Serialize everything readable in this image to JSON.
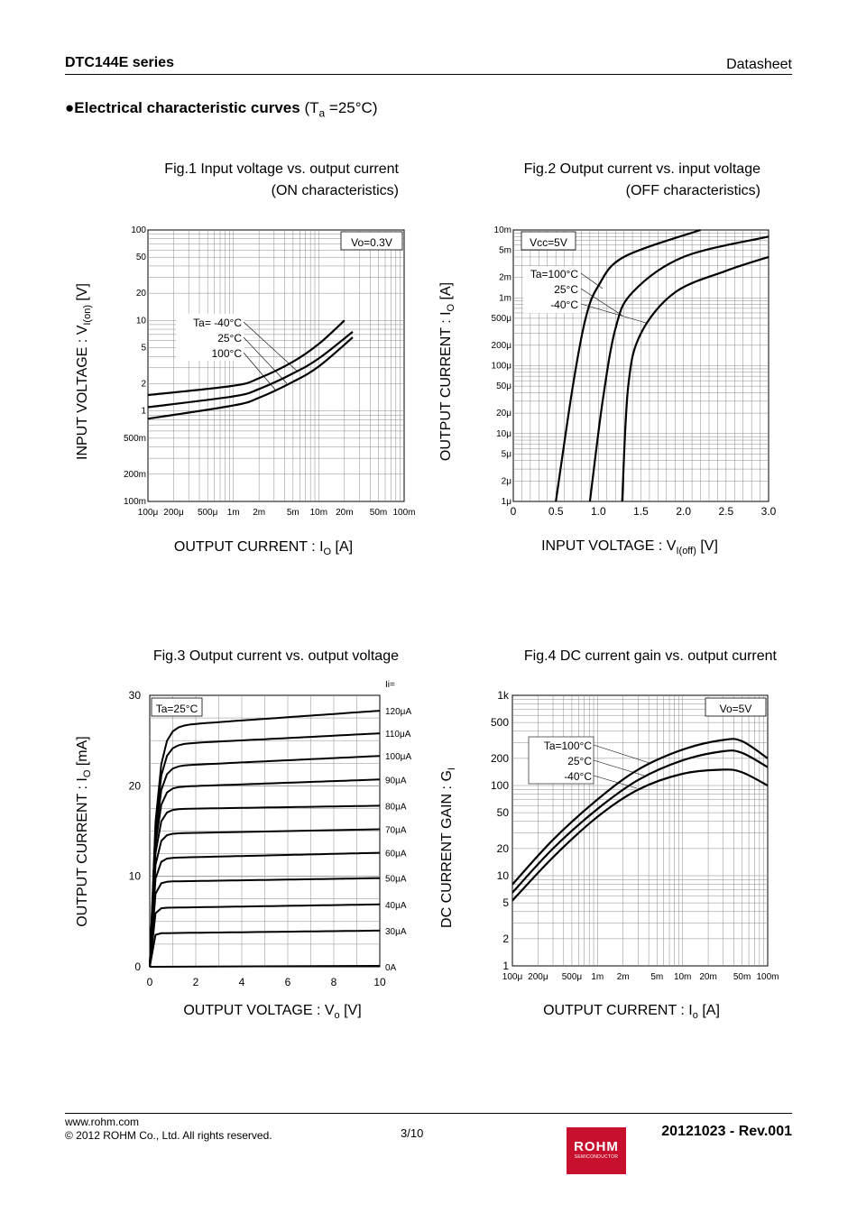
{
  "header": {
    "series": "DTC144E series",
    "doc_type": "Datasheet"
  },
  "section": {
    "title_bold": "Electrical characteristic curves",
    "cond_prefix": "(T",
    "cond_sub": "a",
    "cond_suffix": " =25°C)"
  },
  "fig1": {
    "title_line1": "Fig.1 Input voltage vs. output current",
    "title_line2": "(ON characteristics)",
    "ylabel_main": "INPUT VOLTAGE : V",
    "ylabel_sub": "I(on)",
    "ylabel_unit": " [V]",
    "xlabel_main": "OUTPUT CURRENT : I",
    "xlabel_sub": "O",
    "xlabel_unit": " [A]",
    "condition": "Vo=0.3V",
    "legend": [
      "Ta= -40°C",
      "25°C",
      "100°C"
    ],
    "yticks": [
      "100",
      "50",
      "20",
      "10",
      "5",
      "2",
      "1",
      "500m",
      "200m",
      "100m"
    ],
    "xticks": [
      "100μ",
      "200μ",
      "500μ",
      "1m",
      "2m",
      "5m",
      "10m",
      "20m",
      "50m",
      "100m"
    ]
  },
  "fig2": {
    "title_line1": "Fig.2 Output current vs. input voltage",
    "title_line2": "(OFF characteristics)",
    "ylabel_main": "OUTPUT CURRENT : I",
    "ylabel_sub": "O",
    "ylabel_unit": " [A]",
    "xlabel_main": "INPUT VOLTAGE : V",
    "xlabel_sub": "I(off)",
    "xlabel_unit": " [V]",
    "condition": "Vcc=5V",
    "legend": [
      "Ta=100°C",
      "25°C",
      "-40°C"
    ],
    "yticks": [
      "10m",
      "5m",
      "2m",
      "1m",
      "500μ",
      "200μ",
      "100μ",
      "50μ",
      "20μ",
      "10μ",
      "5μ",
      "2μ",
      "1μ"
    ],
    "xticks": [
      "0",
      "0.5",
      "1.0",
      "1.5",
      "2.0",
      "2.5",
      "3.0"
    ]
  },
  "fig3": {
    "title_line1": "Fig.3 Output current vs. output voltage",
    "ylabel_main": "OUTPUT CURRENT : I",
    "ylabel_sub": "O",
    "ylabel_unit": " [mA]",
    "xlabel_main": "OUTPUT VOLTAGE : V",
    "xlabel_sub": "o",
    "xlabel_unit": " [V]",
    "condition": "Ta=25°C",
    "curve_header": "Ii=",
    "curve_labels": [
      "120μA",
      "110μA",
      "100μA",
      "90μA",
      "80μA",
      "70μA",
      "60μA",
      "50μA",
      "40μA",
      "30μA",
      "0A"
    ],
    "yticks": [
      "30",
      "20",
      "10",
      "0"
    ],
    "xticks": [
      "0",
      "2",
      "4",
      "6",
      "8",
      "10"
    ]
  },
  "fig4": {
    "title_line1": "Fig.4 DC current gain vs. output current",
    "ylabel_main": "DC CURRENT GAIN : G",
    "ylabel_sub": "I",
    "ylabel_unit": "",
    "xlabel_main": "OUTPUT CURRENT : I",
    "xlabel_sub": "o",
    "xlabel_unit": " [A]",
    "condition": "Vo=5V",
    "legend": [
      "Ta=100°C",
      "25°C",
      "-40°C"
    ],
    "yticks": [
      "1k",
      "500",
      "200",
      "100",
      "50",
      "20",
      "10",
      "5",
      "2",
      "1"
    ],
    "xticks": [
      "100μ",
      "200μ",
      "500μ",
      "1m",
      "2m",
      "5m",
      "10m",
      "20m",
      "50m",
      "100m"
    ]
  },
  "chart_data": [
    {
      "type": "line",
      "title": "Fig.1 Input voltage vs. output current (ON characteristics)",
      "xscale": "log",
      "yscale": "log",
      "xlim": [
        0.0001,
        0.1
      ],
      "ylim": [
        0.1,
        100
      ],
      "xlabel": "OUTPUT CURRENT : IO [A]",
      "ylabel": "INPUT VOLTAGE : VI(on) [V]",
      "series": [
        {
          "name": "Ta=-40°C",
          "x": [
            0.0001,
            0.001,
            0.002,
            0.005,
            0.01,
            0.02
          ],
          "y": [
            1.5,
            1.9,
            2.3,
            3.5,
            5.5,
            10
          ]
        },
        {
          "name": "Ta=25°C",
          "x": [
            0.0001,
            0.001,
            0.002,
            0.005,
            0.01,
            0.025
          ],
          "y": [
            1.1,
            1.45,
            1.75,
            2.6,
            3.8,
            7.5
          ]
        },
        {
          "name": "Ta=100°C",
          "x": [
            0.0001,
            0.001,
            0.002,
            0.005,
            0.01,
            0.025
          ],
          "y": [
            0.82,
            1.15,
            1.4,
            2.1,
            3.1,
            6.5
          ]
        }
      ]
    },
    {
      "type": "line",
      "title": "Fig.2 Output current vs. input voltage (OFF characteristics)",
      "xscale": "linear",
      "yscale": "log",
      "xlim": [
        0,
        3.0
      ],
      "ylim": [
        1e-06,
        0.01
      ],
      "xlabel": "INPUT VOLTAGE : VI(off) [V]",
      "ylabel": "OUTPUT CURRENT : IO [A]",
      "series": [
        {
          "name": "Ta=100°C",
          "x": [
            0.5,
            0.7,
            0.85,
            1.0,
            1.3,
            2.2
          ],
          "y": [
            1e-06,
            5e-05,
            0.0005,
            0.0015,
            0.004,
            0.01
          ]
        },
        {
          "name": "Ta=25°C",
          "x": [
            0.9,
            1.05,
            1.2,
            1.4,
            2.0,
            3.0
          ],
          "y": [
            1e-06,
            3e-05,
            0.00035,
            0.0012,
            0.004,
            0.008
          ]
        },
        {
          "name": "Ta=-40°C",
          "x": [
            1.28,
            1.35,
            1.5,
            1.9,
            2.5,
            3.0
          ],
          "y": [
            1e-06,
            5e-05,
            0.0003,
            0.0012,
            0.0025,
            0.004
          ]
        }
      ]
    },
    {
      "type": "line",
      "title": "Fig.3 Output current vs. output voltage",
      "xlim": [
        0,
        10
      ],
      "ylim": [
        0,
        30
      ],
      "xlabel": "OUTPUT VOLTAGE : Vo [V]",
      "ylabel": "OUTPUT CURRENT : IO [mA]",
      "curves": [
        {
          "name": "120μA",
          "sat": 26.5,
          "end": 28.3
        },
        {
          "name": "110μA",
          "sat": 24.5,
          "end": 25.8
        },
        {
          "name": "100μA",
          "sat": 22.1,
          "end": 23.3
        },
        {
          "name": "90μA",
          "sat": 19.8,
          "end": 20.7
        },
        {
          "name": "80μA",
          "sat": 17.4,
          "end": 17.8
        },
        {
          "name": "70μA",
          "sat": 14.7,
          "end": 15.2
        },
        {
          "name": "60μA",
          "sat": 12.0,
          "end": 12.6
        },
        {
          "name": "50μA",
          "sat": 9.4,
          "end": 9.8
        },
        {
          "name": "40μA",
          "sat": 6.5,
          "end": 6.9
        },
        {
          "name": "30μA",
          "sat": 3.7,
          "end": 4.0
        },
        {
          "name": "0A",
          "sat": 0,
          "end": 0
        }
      ]
    },
    {
      "type": "line",
      "title": "Fig.4 DC current gain vs. output current",
      "xscale": "log",
      "yscale": "log",
      "xlim": [
        0.0001,
        0.1
      ],
      "ylim": [
        1,
        1000
      ],
      "xlabel": "OUTPUT CURRENT : Io [A]",
      "ylabel": "DC CURRENT GAIN : GI",
      "series": [
        {
          "name": "Ta=100°C",
          "x": [
            0.0001,
            0.0003,
            0.001,
            0.003,
            0.01,
            0.03,
            0.05,
            0.1
          ],
          "y": [
            8,
            25,
            70,
            150,
            250,
            320,
            310,
            200
          ]
        },
        {
          "name": "Ta=25°C",
          "x": [
            0.0001,
            0.0003,
            0.001,
            0.003,
            0.01,
            0.03,
            0.05,
            0.1
          ],
          "y": [
            6.5,
            20,
            55,
            115,
            190,
            240,
            230,
            160
          ]
        },
        {
          "name": "Ta=-40°C",
          "x": [
            0.0001,
            0.0003,
            0.001,
            0.003,
            0.01,
            0.03,
            0.05,
            0.1
          ],
          "y": [
            5.3,
            16,
            45,
            90,
            135,
            150,
            140,
            100
          ]
        }
      ]
    }
  ],
  "footer": {
    "url": "www.rohm.com",
    "copyright": "© 2012 ROHM Co., Ltd. All rights reserved.",
    "page": "3/10",
    "revision": "20121023 - Rev.001",
    "logo_name": "ROHM",
    "logo_sub": "SEMICONDUCTOR"
  }
}
